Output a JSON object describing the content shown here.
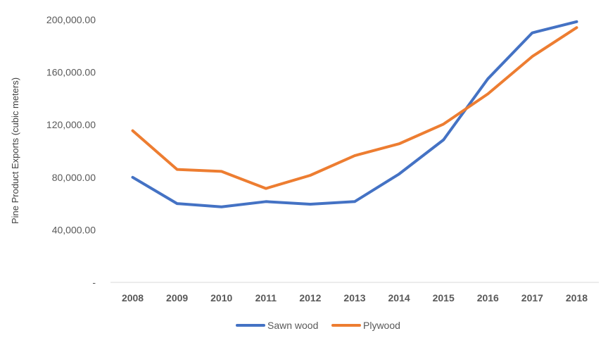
{
  "chart_data": {
    "type": "line",
    "title": "",
    "xlabel": "",
    "ylabel": "Pine Product Exports (cubic meters)",
    "categories": [
      "2008",
      "2009",
      "2010",
      "2011",
      "2012",
      "2013",
      "2014",
      "2015",
      "2016",
      "2017",
      "2018"
    ],
    "ylim": [
      0,
      200000
    ],
    "yticks": [
      0,
      40000,
      80000,
      120000,
      160000,
      200000
    ],
    "ytick_labels": [
      "-",
      "40,000.00",
      "80,000.00",
      "120,000.00",
      "160,000.00",
      "200,000.00"
    ],
    "grid": false,
    "legend": "bottom",
    "series": [
      {
        "name": "Sawn wood",
        "color": "#4472C4",
        "values": [
          80000,
          60000,
          57500,
          61500,
          59500,
          61500,
          82500,
          108500,
          155000,
          190000,
          198500
        ]
      },
      {
        "name": "Plywood",
        "color": "#ED7D31",
        "values": [
          115500,
          86000,
          84500,
          71500,
          81500,
          96500,
          105500,
          120500,
          143500,
          172000,
          194000
        ]
      }
    ]
  }
}
